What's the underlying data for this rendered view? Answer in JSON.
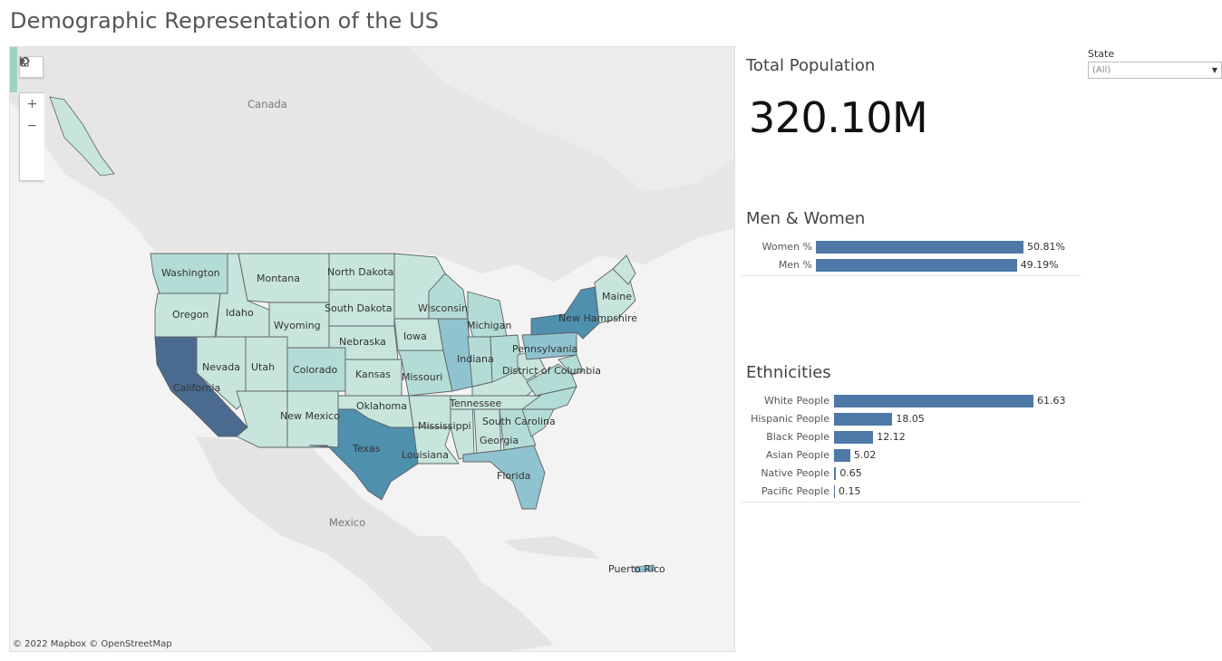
{
  "page": {
    "title": "Demographic Representation of the US"
  },
  "map": {
    "attribution": "© 2022 Mapbox  © OpenStreetMap",
    "tools": {
      "search": "search-icon",
      "zoom_in": "+",
      "zoom_out": "−",
      "home": "home-icon",
      "expand": "play-icon"
    },
    "countries": [
      "Canada",
      "Mexico",
      "Puerto Rico"
    ],
    "states": [
      "Washington",
      "Montana",
      "North Dakota",
      "Maine",
      "Oregon",
      "Idaho",
      "Wyoming",
      "South Dakota",
      "Wisconsin",
      "Michigan",
      "New Hampshire",
      "Nebraska",
      "Iowa",
      "Pennsylvania",
      "Nevada",
      "Utah",
      "Colorado",
      "Kansas",
      "Missouri",
      "Indiana",
      "District of Columbia",
      "California",
      "Oklahoma",
      "Tennessee",
      "New Mexico",
      "Mississippi",
      "South Carolina",
      "Georgia",
      "Texas",
      "Louisiana",
      "Florida"
    ],
    "colors": {
      "low": "#c7e5dc",
      "mid": "#8fc3cf",
      "high": "#4f90ae",
      "top": "#4a6b8f",
      "land": "#e4e4e4",
      "water": "#f3f3f3",
      "border": "#5d6266"
    }
  },
  "total_population": {
    "title": "Total Population",
    "value": "320.10M"
  },
  "state_filter": {
    "label": "State",
    "value": "(All)"
  },
  "gender": {
    "title": "Men & Women",
    "rows": [
      {
        "label": "Women %",
        "value": 50.81,
        "display": "50.81%"
      },
      {
        "label": "Men %",
        "value": 49.19,
        "display": "49.19%"
      }
    ]
  },
  "ethnicities": {
    "title": "Ethnicities",
    "rows": [
      {
        "label": "White People",
        "value": 61.63,
        "display": "61.63"
      },
      {
        "label": "Hispanic People",
        "value": 18.05,
        "display": "18.05"
      },
      {
        "label": "Black People",
        "value": 12.12,
        "display": "12.12"
      },
      {
        "label": "Asian People",
        "value": 5.02,
        "display": "5.02"
      },
      {
        "label": "Native People",
        "value": 0.65,
        "display": "0.65"
      },
      {
        "label": "Pacific People",
        "value": 0.15,
        "display": "0.15"
      }
    ]
  },
  "bar_color": "#4e79a7"
}
